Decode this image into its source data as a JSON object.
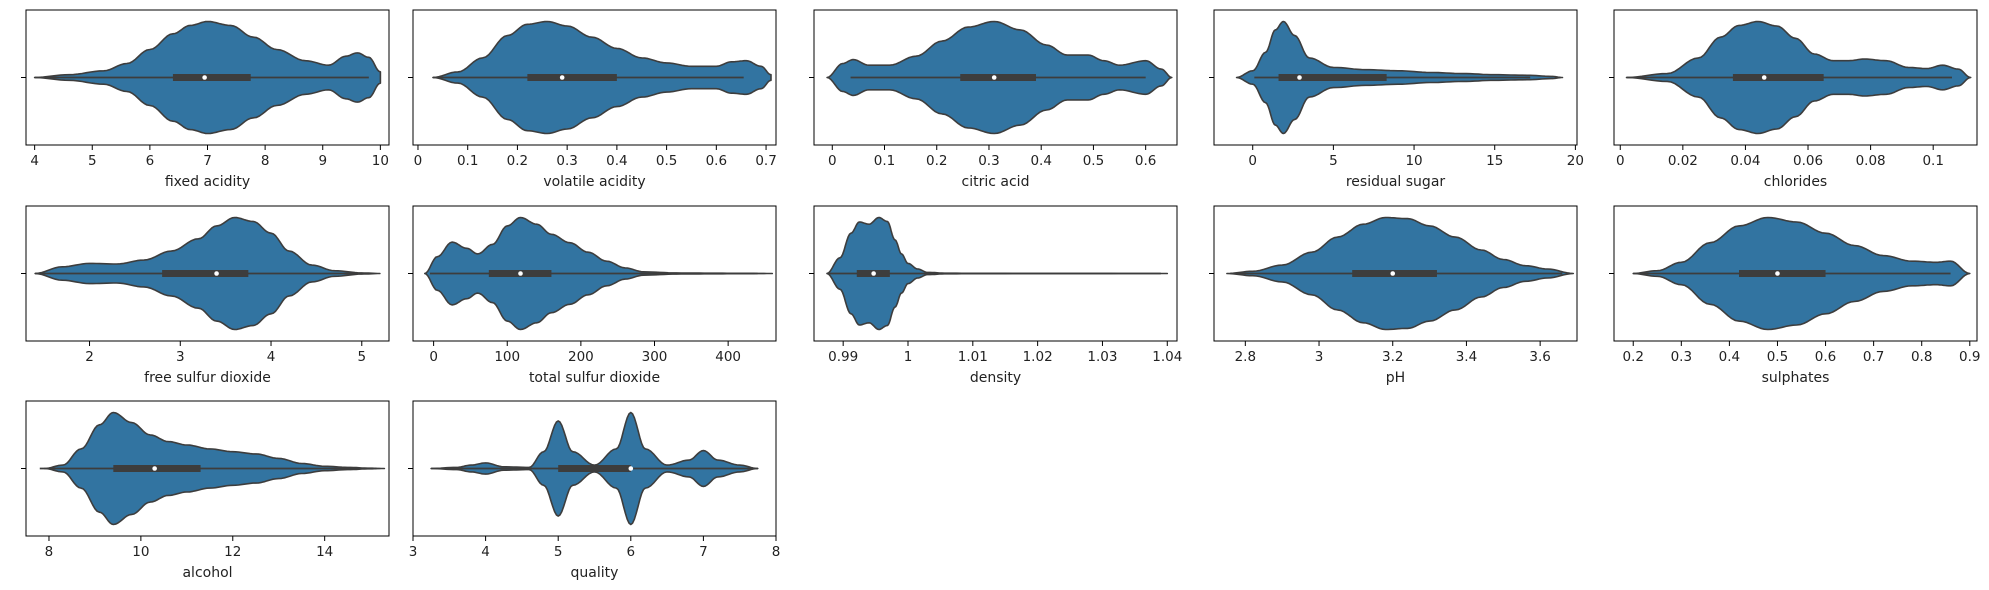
{
  "figure": {
    "colors": {
      "violin": "#3274a1",
      "outline": "#3d3d3d",
      "box": "#3d3d3d",
      "median": "#ffffff"
    }
  },
  "chart_data": [
    {
      "type": "violin",
      "xlabel": "fixed acidity",
      "xticks": [
        4,
        5,
        6,
        7,
        8,
        9,
        10
      ],
      "xlim": [
        3.85,
        10.15
      ],
      "whisker": [
        4.0,
        9.8
      ],
      "quartiles": [
        6.4,
        7.75
      ],
      "median": 6.95,
      "ytick": [
        ""
      ],
      "density_x": [
        4.0,
        4.6,
        5.2,
        5.6,
        6.0,
        6.4,
        6.7,
        7.0,
        7.4,
        7.8,
        8.2,
        8.7,
        9.1,
        9.4,
        9.6,
        9.8,
        10.0
      ],
      "density_y": [
        0.0,
        0.05,
        0.12,
        0.25,
        0.5,
        0.78,
        0.93,
        1.0,
        0.93,
        0.72,
        0.5,
        0.3,
        0.22,
        0.38,
        0.44,
        0.36,
        0.1
      ]
    },
    {
      "type": "violin",
      "xlabel": "volatile acidity",
      "xticks": [
        0.0,
        0.1,
        0.2,
        0.3,
        0.4,
        0.5,
        0.6,
        0.7
      ],
      "xlim": [
        -0.01,
        0.72
      ],
      "whisker": [
        0.03,
        0.655
      ],
      "quartiles": [
        0.22,
        0.4
      ],
      "median": 0.29,
      "ytick": [
        ""
      ],
      "density_x": [
        0.03,
        0.08,
        0.13,
        0.18,
        0.22,
        0.26,
        0.3,
        0.35,
        0.4,
        0.45,
        0.5,
        0.55,
        0.6,
        0.63,
        0.66,
        0.69,
        0.71
      ],
      "density_y": [
        0.0,
        0.1,
        0.35,
        0.75,
        0.95,
        1.0,
        0.92,
        0.72,
        0.52,
        0.35,
        0.26,
        0.2,
        0.2,
        0.28,
        0.3,
        0.2,
        0.05
      ]
    },
    {
      "type": "violin",
      "xlabel": "citric acid",
      "xticks": [
        0.0,
        0.1,
        0.2,
        0.3,
        0.4,
        0.5,
        0.6
      ],
      "xlim": [
        -0.035,
        0.66
      ],
      "whisker": [
        0.035,
        0.6
      ],
      "quartiles": [
        0.245,
        0.39
      ],
      "median": 0.31,
      "ytick": [
        ""
      ],
      "density_x": [
        -0.01,
        0.02,
        0.04,
        0.07,
        0.11,
        0.16,
        0.21,
        0.26,
        0.31,
        0.36,
        0.41,
        0.45,
        0.49,
        0.52,
        0.55,
        0.6,
        0.63,
        0.65
      ],
      "density_y": [
        0.0,
        0.25,
        0.32,
        0.22,
        0.22,
        0.38,
        0.65,
        0.9,
        1.0,
        0.85,
        0.58,
        0.4,
        0.4,
        0.3,
        0.22,
        0.3,
        0.15,
        0.0
      ]
    },
    {
      "type": "violin",
      "xlabel": "residual sugar",
      "xticks": [
        0,
        5,
        10,
        15,
        20
      ],
      "xlim": [
        -2.4,
        20.1
      ],
      "whisker": [
        0.1,
        17.2
      ],
      "quartiles": [
        1.6,
        8.3
      ],
      "median": 2.9,
      "ytick": [
        ""
      ],
      "density_x": [
        -1.0,
        0.0,
        0.8,
        1.4,
        1.9,
        2.6,
        3.5,
        5.0,
        7.0,
        9.0,
        11.0,
        13.0,
        15.0,
        17.0,
        18.5,
        19.2
      ],
      "density_y": [
        0.0,
        0.12,
        0.45,
        0.85,
        1.0,
        0.75,
        0.35,
        0.18,
        0.14,
        0.12,
        0.09,
        0.07,
        0.05,
        0.04,
        0.02,
        0.0
      ]
    },
    {
      "type": "violin",
      "xlabel": "chlorides",
      "xticks": [
        0.0,
        0.02,
        0.04,
        0.06,
        0.08,
        0.1
      ],
      "xlim": [
        -0.002,
        0.114
      ],
      "whisker": [
        0.002,
        0.106
      ],
      "quartiles": [
        0.036,
        0.065
      ],
      "median": 0.046,
      "ytick": [
        ""
      ],
      "density_x": [
        0.002,
        0.015,
        0.025,
        0.032,
        0.038,
        0.044,
        0.05,
        0.056,
        0.062,
        0.068,
        0.073,
        0.078,
        0.085,
        0.092,
        0.098,
        0.103,
        0.108,
        0.112
      ],
      "density_y": [
        0.0,
        0.07,
        0.35,
        0.72,
        0.93,
        1.0,
        0.92,
        0.7,
        0.42,
        0.3,
        0.3,
        0.33,
        0.3,
        0.18,
        0.16,
        0.22,
        0.15,
        0.0
      ]
    },
    {
      "type": "violin",
      "xlabel": "free sulfur dioxide",
      "xticks": [
        2,
        3,
        4,
        5
      ],
      "xlim": [
        1.3,
        5.3
      ],
      "whisker": [
        1.4,
        5.05
      ],
      "quartiles": [
        2.8,
        3.75
      ],
      "median": 3.4,
      "ytick": [
        ""
      ],
      "density_x": [
        1.4,
        1.7,
        2.0,
        2.3,
        2.6,
        2.9,
        3.2,
        3.4,
        3.6,
        3.8,
        4.0,
        4.2,
        4.45,
        4.7,
        5.0,
        5.2
      ],
      "density_y": [
        0.0,
        0.12,
        0.18,
        0.17,
        0.24,
        0.4,
        0.62,
        0.85,
        1.0,
        0.93,
        0.72,
        0.4,
        0.15,
        0.05,
        0.01,
        0.0
      ]
    },
    {
      "type": "violin",
      "xlabel": "total sulfur dioxide",
      "xticks": [
        0,
        100,
        200,
        300,
        400
      ],
      "xlim": [
        -28,
        465
      ],
      "whisker": [
        -5,
        440
      ],
      "quartiles": [
        75,
        160
      ],
      "median": 118,
      "ytick": [
        ""
      ],
      "density_x": [
        -12,
        5,
        25,
        45,
        60,
        80,
        100,
        118,
        140,
        160,
        185,
        210,
        235,
        260,
        285,
        330,
        380,
        430,
        460
      ],
      "density_y": [
        0.0,
        0.3,
        0.56,
        0.45,
        0.35,
        0.52,
        0.85,
        1.0,
        0.88,
        0.7,
        0.55,
        0.38,
        0.22,
        0.1,
        0.03,
        0.01,
        0.005,
        0.003,
        0.0
      ]
    },
    {
      "type": "violin",
      "xlabel": "density",
      "xticks": [
        0.99,
        1.0,
        1.01,
        1.02,
        1.03,
        1.04
      ],
      "xlim": [
        0.9855,
        1.0415
      ],
      "whisker": [
        0.9875,
        1.039
      ],
      "quartiles": [
        0.9921,
        0.9972
      ],
      "median": 0.9947,
      "ytick": [
        ""
      ],
      "density_x": [
        0.9875,
        0.9895,
        0.9912,
        0.9925,
        0.994,
        0.9955,
        0.9968,
        0.998,
        0.999,
        1.0,
        1.0015,
        1.003,
        1.006,
        1.012,
        1.02,
        1.03,
        1.04
      ],
      "density_y": [
        0.0,
        0.28,
        0.72,
        0.92,
        0.88,
        1.0,
        0.93,
        0.6,
        0.35,
        0.18,
        0.08,
        0.02,
        0.005,
        0.003,
        0.002,
        0.001,
        0.0
      ]
    },
    {
      "type": "violin",
      "xlabel": "pH",
      "xticks": [
        2.8,
        3.0,
        3.2,
        3.4,
        3.6
      ],
      "xlim": [
        2.715,
        3.7
      ],
      "whisker": [
        2.76,
        3.66
      ],
      "quartiles": [
        3.09,
        3.32
      ],
      "median": 3.2,
      "ytick": [
        ""
      ],
      "density_x": [
        2.75,
        2.82,
        2.9,
        2.98,
        3.05,
        3.12,
        3.18,
        3.24,
        3.3,
        3.37,
        3.44,
        3.5,
        3.56,
        3.62,
        3.69
      ],
      "density_y": [
        0.0,
        0.04,
        0.15,
        0.38,
        0.65,
        0.88,
        1.0,
        0.98,
        0.85,
        0.65,
        0.42,
        0.25,
        0.14,
        0.08,
        0.0
      ]
    },
    {
      "type": "violin",
      "xlabel": "sulphates",
      "xticks": [
        0.2,
        0.3,
        0.4,
        0.5,
        0.6,
        0.7,
        0.8,
        0.9
      ],
      "xlim": [
        0.16,
        0.915
      ],
      "whisker": [
        0.2,
        0.86
      ],
      "quartiles": [
        0.42,
        0.6
      ],
      "median": 0.5,
      "ytick": [
        ""
      ],
      "density_x": [
        0.2,
        0.25,
        0.3,
        0.36,
        0.42,
        0.48,
        0.54,
        0.6,
        0.66,
        0.72,
        0.78,
        0.83,
        0.86,
        0.9
      ],
      "density_y": [
        0.0,
        0.05,
        0.2,
        0.55,
        0.85,
        1.0,
        0.92,
        0.72,
        0.5,
        0.32,
        0.22,
        0.2,
        0.22,
        0.0
      ]
    },
    {
      "type": "violin",
      "xlabel": "alcohol",
      "xticks": [
        8,
        10,
        12,
        14
      ],
      "xlim": [
        7.5,
        15.4
      ],
      "whisker": [
        7.8,
        15.1
      ],
      "quartiles": [
        9.4,
        11.3
      ],
      "median": 10.3,
      "ytick": [
        ""
      ],
      "density_x": [
        7.9,
        8.3,
        8.7,
        9.1,
        9.4,
        9.8,
        10.2,
        10.6,
        11.0,
        11.5,
        12.0,
        12.5,
        13.0,
        13.5,
        14.0,
        14.5,
        15.0,
        15.3
      ],
      "density_y": [
        0.0,
        0.06,
        0.35,
        0.78,
        1.0,
        0.82,
        0.6,
        0.48,
        0.42,
        0.35,
        0.3,
        0.26,
        0.18,
        0.09,
        0.04,
        0.02,
        0.005,
        0.0
      ]
    },
    {
      "type": "violin",
      "xlabel": "quality",
      "xticks": [
        3,
        4,
        5,
        6,
        7,
        8
      ],
      "xlim": [
        3.0,
        8.0
      ],
      "whisker": [
        3.25,
        7.75
      ],
      "quartiles": [
        5.0,
        6.0
      ],
      "median": 6.0,
      "ytick": [
        ""
      ],
      "density_x": [
        3.25,
        3.6,
        3.8,
        4.0,
        4.25,
        4.6,
        4.8,
        5.0,
        5.2,
        5.5,
        5.8,
        6.0,
        6.2,
        6.5,
        6.8,
        7.0,
        7.2,
        7.5,
        7.75
      ],
      "density_y": [
        0.0,
        0.02,
        0.06,
        0.1,
        0.03,
        0.02,
        0.3,
        0.85,
        0.3,
        0.06,
        0.35,
        1.0,
        0.35,
        0.06,
        0.15,
        0.32,
        0.15,
        0.06,
        0.0
      ]
    }
  ]
}
